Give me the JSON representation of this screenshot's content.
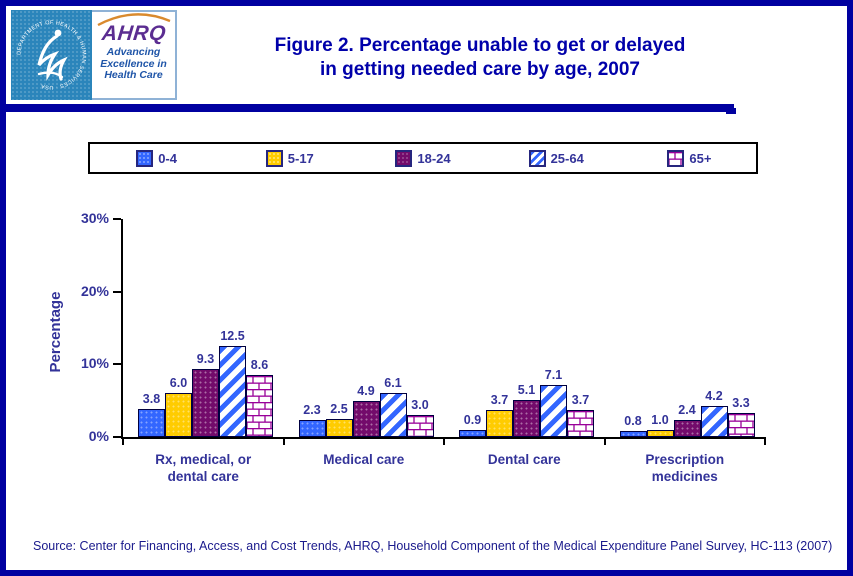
{
  "page": {
    "background": "#FFFFFF",
    "border_color": "#0000A0",
    "accent_navy": "#0000AA",
    "text_navy": "#333399"
  },
  "header": {
    "logo": {
      "seal_text": "DEPARTMENT OF HEALTH & HUMAN SERVICES · USA",
      "org": "AHRQ",
      "tagline_lines": [
        "Advancing",
        "Excellence in",
        "Health Care"
      ]
    },
    "title_lines": [
      "Figure 2. Percentage unable to get or delayed",
      "in getting needed care by age, 2007"
    ]
  },
  "legend": {
    "items": [
      {
        "label": "0-4",
        "swatch": "solid-blue"
      },
      {
        "label": "5-17",
        "swatch": "solid-yellow"
      },
      {
        "label": "18-24",
        "swatch": "solid-purple"
      },
      {
        "label": "25-64",
        "swatch": "hatch-blue"
      },
      {
        "label": "65+",
        "swatch": "brick-magenta"
      }
    ]
  },
  "chart_data": {
    "type": "bar",
    "title": "Figure 2. Percentage unable to get or delayed in getting needed care by age, 2007",
    "categories": [
      "Rx, medical, or dental care",
      "Medical care",
      "Dental care",
      "Prescription medicines"
    ],
    "category_label_lines": [
      [
        "Rx, medical, or",
        "dental care"
      ],
      [
        "Medical care"
      ],
      [
        "Dental care"
      ],
      [
        "Prescription",
        "medicines"
      ]
    ],
    "series": [
      {
        "name": "0-4",
        "pattern": "solid",
        "color": "#3366FF",
        "values": [
          3.8,
          2.3,
          0.9,
          0.8
        ]
      },
      {
        "name": "5-17",
        "pattern": "solid",
        "color": "#FFCC00",
        "values": [
          6.0,
          2.5,
          3.7,
          1.0
        ]
      },
      {
        "name": "18-24",
        "pattern": "solid",
        "color": "#730B6B",
        "values": [
          9.3,
          4.9,
          5.1,
          2.4
        ]
      },
      {
        "name": "25-64",
        "pattern": "hatch",
        "color": "#3366FF",
        "values": [
          12.5,
          6.1,
          7.1,
          4.2
        ]
      },
      {
        "name": "65+",
        "pattern": "brick",
        "color": "#990099",
        "values": [
          8.6,
          3.0,
          3.7,
          3.3
        ]
      }
    ],
    "ylabel": "Percentage",
    "xlabel": "",
    "yticks": [
      0,
      10,
      20,
      30
    ],
    "ytick_labels": [
      "0%",
      "10%",
      "20%",
      "30%"
    ],
    "ylim": [
      0,
      30
    ],
    "grid": false,
    "legend_position": "top",
    "value_labels": "one_decimal_above_bars"
  },
  "footer": {
    "source": "Source: Center for Financing, Access, and Cost Trends, AHRQ, Household Component of the Medical Expenditure Panel Survey, HC-113 (2007)"
  }
}
